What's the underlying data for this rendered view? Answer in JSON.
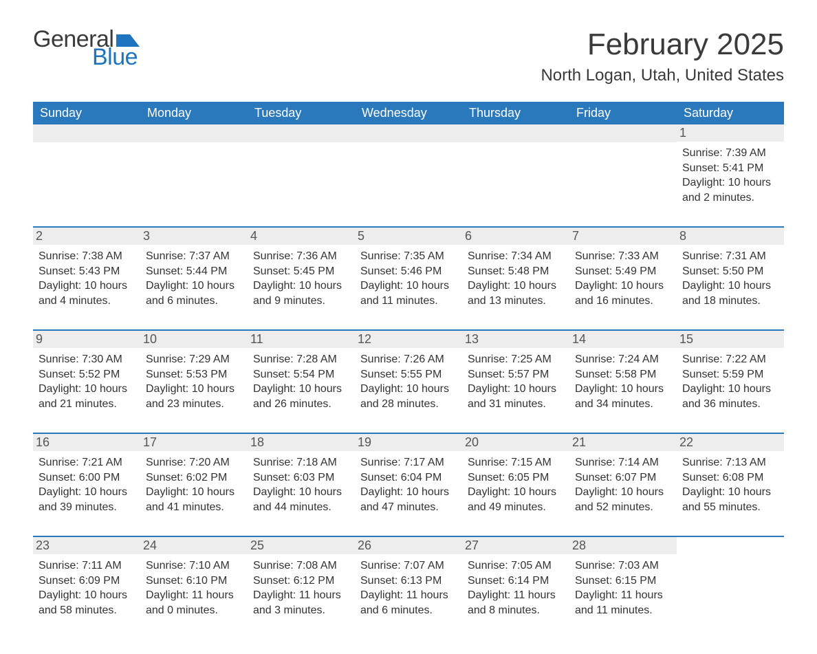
{
  "logo": {
    "text_general": "General",
    "text_blue": "Blue",
    "brand_color": "#1f74bf"
  },
  "title": "February 2025",
  "location": "North Logan, Utah, United States",
  "colors": {
    "header_bg": "#2b79bd",
    "header_text": "#ffffff",
    "daynum_bg": "#ededed",
    "daynum_text": "#555555",
    "body_text": "#333333",
    "rule": "#2b79bd"
  },
  "typography": {
    "title_fontsize": 44,
    "location_fontsize": 24,
    "dow_fontsize": 18,
    "daynum_fontsize": 18,
    "body_fontsize": 16
  },
  "dow": [
    "Sunday",
    "Monday",
    "Tuesday",
    "Wednesday",
    "Thursday",
    "Friday",
    "Saturday"
  ],
  "weeks": [
    [
      null,
      null,
      null,
      null,
      null,
      null,
      {
        "n": "1",
        "sunrise": "Sunrise: 7:39 AM",
        "sunset": "Sunset: 5:41 PM",
        "daylight": "Daylight: 10 hours and 2 minutes."
      }
    ],
    [
      {
        "n": "2",
        "sunrise": "Sunrise: 7:38 AM",
        "sunset": "Sunset: 5:43 PM",
        "daylight": "Daylight: 10 hours and 4 minutes."
      },
      {
        "n": "3",
        "sunrise": "Sunrise: 7:37 AM",
        "sunset": "Sunset: 5:44 PM",
        "daylight": "Daylight: 10 hours and 6 minutes."
      },
      {
        "n": "4",
        "sunrise": "Sunrise: 7:36 AM",
        "sunset": "Sunset: 5:45 PM",
        "daylight": "Daylight: 10 hours and 9 minutes."
      },
      {
        "n": "5",
        "sunrise": "Sunrise: 7:35 AM",
        "sunset": "Sunset: 5:46 PM",
        "daylight": "Daylight: 10 hours and 11 minutes."
      },
      {
        "n": "6",
        "sunrise": "Sunrise: 7:34 AM",
        "sunset": "Sunset: 5:48 PM",
        "daylight": "Daylight: 10 hours and 13 minutes."
      },
      {
        "n": "7",
        "sunrise": "Sunrise: 7:33 AM",
        "sunset": "Sunset: 5:49 PM",
        "daylight": "Daylight: 10 hours and 16 minutes."
      },
      {
        "n": "8",
        "sunrise": "Sunrise: 7:31 AM",
        "sunset": "Sunset: 5:50 PM",
        "daylight": "Daylight: 10 hours and 18 minutes."
      }
    ],
    [
      {
        "n": "9",
        "sunrise": "Sunrise: 7:30 AM",
        "sunset": "Sunset: 5:52 PM",
        "daylight": "Daylight: 10 hours and 21 minutes."
      },
      {
        "n": "10",
        "sunrise": "Sunrise: 7:29 AM",
        "sunset": "Sunset: 5:53 PM",
        "daylight": "Daylight: 10 hours and 23 minutes."
      },
      {
        "n": "11",
        "sunrise": "Sunrise: 7:28 AM",
        "sunset": "Sunset: 5:54 PM",
        "daylight": "Daylight: 10 hours and 26 minutes."
      },
      {
        "n": "12",
        "sunrise": "Sunrise: 7:26 AM",
        "sunset": "Sunset: 5:55 PM",
        "daylight": "Daylight: 10 hours and 28 minutes."
      },
      {
        "n": "13",
        "sunrise": "Sunrise: 7:25 AM",
        "sunset": "Sunset: 5:57 PM",
        "daylight": "Daylight: 10 hours and 31 minutes."
      },
      {
        "n": "14",
        "sunrise": "Sunrise: 7:24 AM",
        "sunset": "Sunset: 5:58 PM",
        "daylight": "Daylight: 10 hours and 34 minutes."
      },
      {
        "n": "15",
        "sunrise": "Sunrise: 7:22 AM",
        "sunset": "Sunset: 5:59 PM",
        "daylight": "Daylight: 10 hours and 36 minutes."
      }
    ],
    [
      {
        "n": "16",
        "sunrise": "Sunrise: 7:21 AM",
        "sunset": "Sunset: 6:00 PM",
        "daylight": "Daylight: 10 hours and 39 minutes."
      },
      {
        "n": "17",
        "sunrise": "Sunrise: 7:20 AM",
        "sunset": "Sunset: 6:02 PM",
        "daylight": "Daylight: 10 hours and 41 minutes."
      },
      {
        "n": "18",
        "sunrise": "Sunrise: 7:18 AM",
        "sunset": "Sunset: 6:03 PM",
        "daylight": "Daylight: 10 hours and 44 minutes."
      },
      {
        "n": "19",
        "sunrise": "Sunrise: 7:17 AM",
        "sunset": "Sunset: 6:04 PM",
        "daylight": "Daylight: 10 hours and 47 minutes."
      },
      {
        "n": "20",
        "sunrise": "Sunrise: 7:15 AM",
        "sunset": "Sunset: 6:05 PM",
        "daylight": "Daylight: 10 hours and 49 minutes."
      },
      {
        "n": "21",
        "sunrise": "Sunrise: 7:14 AM",
        "sunset": "Sunset: 6:07 PM",
        "daylight": "Daylight: 10 hours and 52 minutes."
      },
      {
        "n": "22",
        "sunrise": "Sunrise: 7:13 AM",
        "sunset": "Sunset: 6:08 PM",
        "daylight": "Daylight: 10 hours and 55 minutes."
      }
    ],
    [
      {
        "n": "23",
        "sunrise": "Sunrise: 7:11 AM",
        "sunset": "Sunset: 6:09 PM",
        "daylight": "Daylight: 10 hours and 58 minutes."
      },
      {
        "n": "24",
        "sunrise": "Sunrise: 7:10 AM",
        "sunset": "Sunset: 6:10 PM",
        "daylight": "Daylight: 11 hours and 0 minutes."
      },
      {
        "n": "25",
        "sunrise": "Sunrise: 7:08 AM",
        "sunset": "Sunset: 6:12 PM",
        "daylight": "Daylight: 11 hours and 3 minutes."
      },
      {
        "n": "26",
        "sunrise": "Sunrise: 7:07 AM",
        "sunset": "Sunset: 6:13 PM",
        "daylight": "Daylight: 11 hours and 6 minutes."
      },
      {
        "n": "27",
        "sunrise": "Sunrise: 7:05 AM",
        "sunset": "Sunset: 6:14 PM",
        "daylight": "Daylight: 11 hours and 8 minutes."
      },
      {
        "n": "28",
        "sunrise": "Sunrise: 7:03 AM",
        "sunset": "Sunset: 6:15 PM",
        "daylight": "Daylight: 11 hours and 11 minutes."
      },
      null
    ]
  ]
}
